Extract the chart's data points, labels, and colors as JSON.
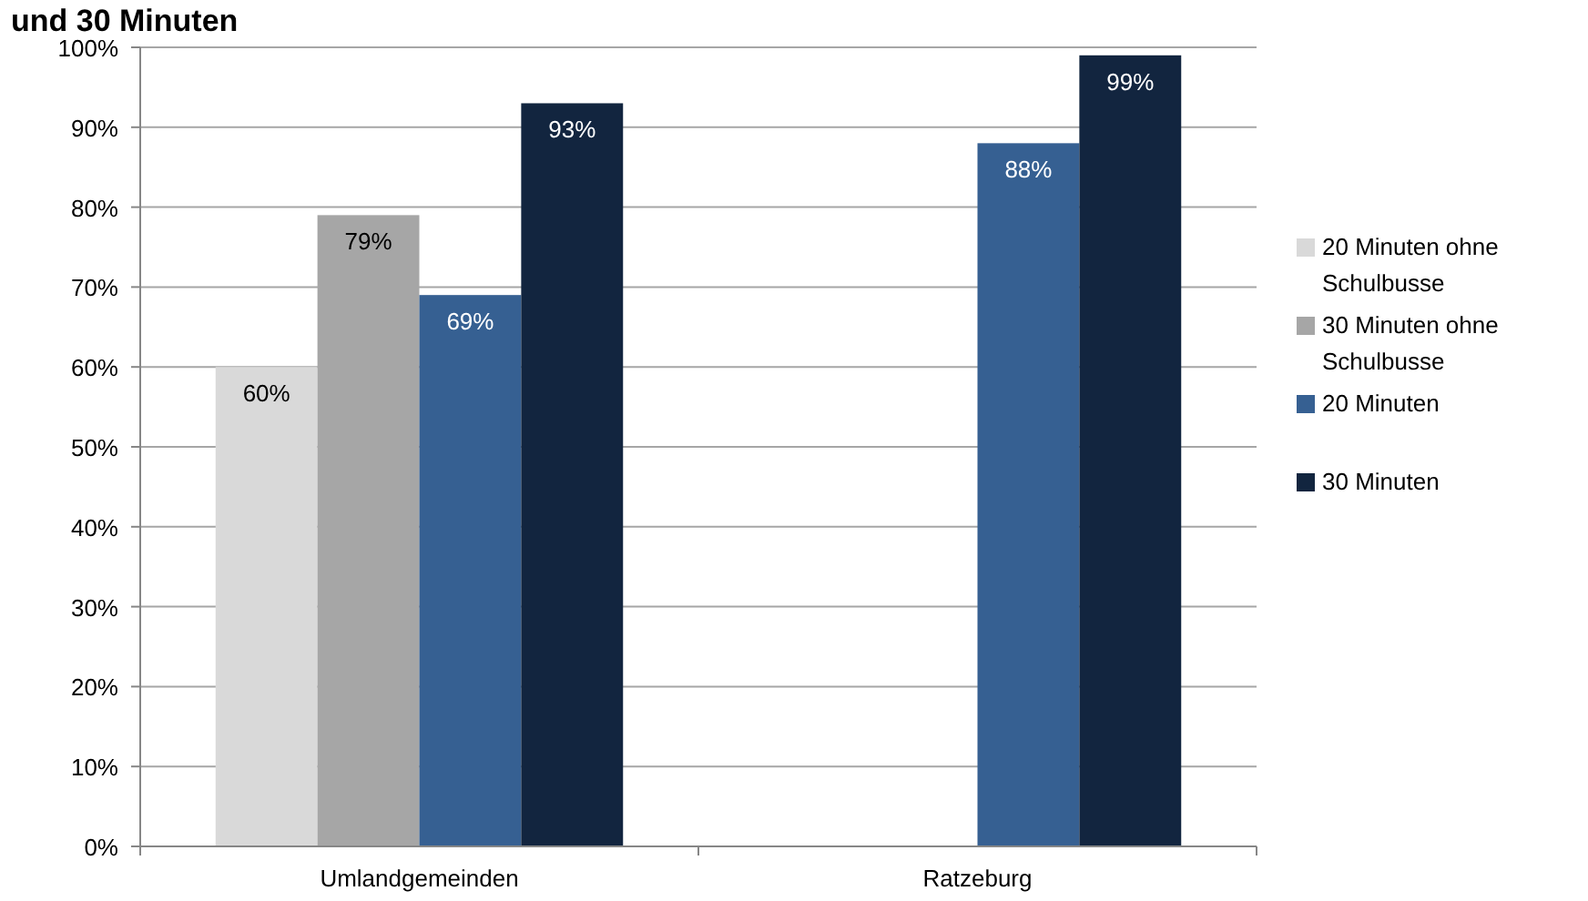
{
  "chart_data": {
    "type": "bar",
    "title": "und 30 Minuten",
    "categories": [
      "Umlandgemeinden",
      "Ratzeburg"
    ],
    "series": [
      {
        "name": "20 Minuten ohne Schulbusse",
        "color": "#d9d9d9",
        "values": [
          60,
          null
        ],
        "value_labels": [
          "60%",
          null
        ]
      },
      {
        "name": "30 Minuten ohne Schulbusse",
        "color": "#a6a6a6",
        "values": [
          79,
          null
        ],
        "value_labels": [
          "79%",
          null
        ]
      },
      {
        "name": "20 Minuten",
        "color": "#366092",
        "values": [
          69,
          88
        ],
        "value_labels": [
          "69%",
          "88%"
        ]
      },
      {
        "name": "30 Minuten",
        "color": "#12253f",
        "values": [
          93,
          99
        ],
        "value_labels": [
          "93%",
          "99%"
        ]
      }
    ],
    "ylim": [
      0,
      100
    ],
    "yticks": [
      {
        "value": 0,
        "label": "0%"
      },
      {
        "value": 10,
        "label": "10%"
      },
      {
        "value": 20,
        "label": "20%"
      },
      {
        "value": 30,
        "label": "30%"
      },
      {
        "value": 40,
        "label": "40%"
      },
      {
        "value": 50,
        "label": "50%"
      },
      {
        "value": 60,
        "label": "60%"
      },
      {
        "value": 70,
        "label": "70%"
      },
      {
        "value": 80,
        "label": "80%"
      },
      {
        "value": 90,
        "label": "90%"
      },
      {
        "value": 100,
        "label": "100%"
      }
    ],
    "grid": "y",
    "legend": "right"
  }
}
